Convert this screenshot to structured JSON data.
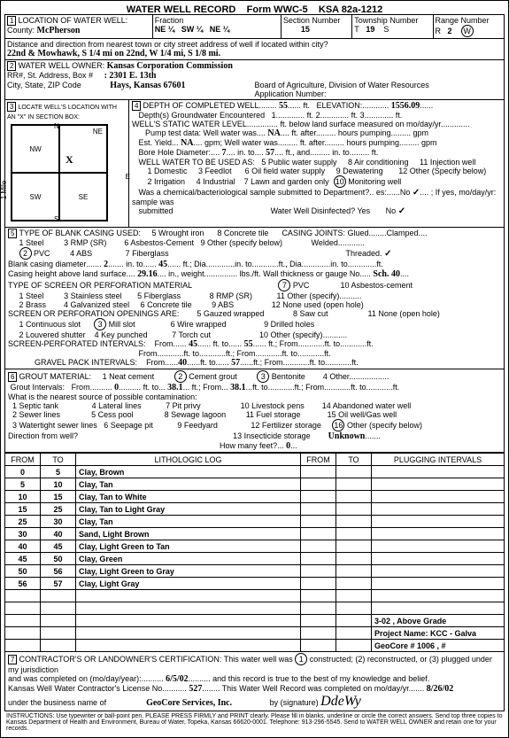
{
  "header": {
    "title": "WATER WELL RECORD",
    "form": "Form WWC-5",
    "ksa": "KSA 82a-1212"
  },
  "s1": {
    "label": "LOCATION OF WATER WELL:",
    "county_label": "County:",
    "county": "McPherson",
    "fraction_label": "Fraction",
    "frac1": "NE ¼",
    "frac2": "SW ¼",
    "frac3": "NE ¼",
    "section_label": "Section Number",
    "section": "15",
    "township_label": "Township Number",
    "township_t": "T",
    "township": "19",
    "township_s": "S",
    "range_label": "Range Number",
    "range_r": "R",
    "range": "2",
    "range_w": "W",
    "dist_label": "Distance and direction from nearest town or city street address of well if located within city?",
    "dist": "22nd & Mowhawk, S 1/4 mi on 22nd, W 1/4 mi, S 1/8 mi."
  },
  "s2": {
    "label": "WATER WELL OWNER:",
    "owner": "Kansas Corporation Commission",
    "addr_label": "RR#, St. Address, Box #",
    "addr": ": 2301 E. 13th",
    "city_label": "City, State, ZIP Code",
    "city": "Hays, Kansas  67601",
    "board": "Board of Agriculture, Division of Water Resources",
    "app_label": "Application Number:"
  },
  "s3": {
    "label": "LOCATE WELL'S LOCATION WITH AN \"X\" IN SECTION BOX:",
    "nw": "NW",
    "ne": "NE",
    "sw": "SW",
    "se": "SE",
    "n": "N",
    "s": "S",
    "e": "E",
    "w": "W",
    "mile": "1 Mile",
    "x": "X"
  },
  "s4": {
    "label": "DEPTH OF COMPLETED WELL",
    "depth": "55",
    "ft": "ft.",
    "elev_label": "ELEVATION:",
    "elev": "1556.09",
    "gw_label": "Depth(s) Groundwater Encountered",
    "gw1": "1",
    "gw2": "ft. 2",
    "gw3": "ft. 3",
    "gw4": "ft.",
    "static_label": "WELL'S STATIC WATER LEVEL",
    "static_suffix": "ft. below land surface measured on mo/day/yr",
    "pump_label": "Pump test data: Well water was",
    "pump_na": "NA",
    "after": "ft. after",
    "hours": "hours pumping",
    "gpm": "gpm",
    "est_label": "Est. Yield",
    "est_na": "NA",
    "gpm2": "gpm; Well water was",
    "bore_label": "Bore Hole Diameter:",
    "bore": "7",
    "into": "in. to",
    "bore2": "57",
    "ftand": "ft., and",
    "into2": "in. to",
    "ft2": "ft.",
    "use_label": "WELL WATER TO BE USED AS:",
    "u1": "1  Domestic",
    "u3": "3  Feedlot",
    "u5": "5  Public water supply",
    "u6": "6  Oil field water supply",
    "u8": "8  Air conditioning",
    "u9": "9  Dewatering",
    "u11": "11  Injection well",
    "u12": "12  Other (Specify below)",
    "u2": "2  Irrigation",
    "u4": "4  Industrial",
    "u7": "7  Lawn and garden only",
    "u10": "Monitoring well",
    "chem_label": "Was a chemical/bacteriological sample submitted to Department?",
    "yesno": "es:......No",
    "ifyes": "; If yes, mo/day/yr: sample was",
    "sub_label": "submitted",
    "dis_label": "Water Well Disinfected?  Yes",
    "no": "No",
    "check": "✓"
  },
  "s5": {
    "label": "TYPE OF BLANK CASING USED:",
    "c1": "1  Steel",
    "c3": "3  RMP (SR)",
    "c5": "5  Wrought iron",
    "c8": "8  Concrete tile",
    "joints_label": "CASING JOINTS: Glued........Clamped",
    "c2": "PVC",
    "c4": "4  ABS",
    "c6": "6  Asbestos-Cement",
    "c7": "7  Fiberglass",
    "c9": "9  Other (specify below)",
    "welded": "Welded",
    "threaded": "Threaded.",
    "tcheck": "✓",
    "dia_label": "Blank casing diameter",
    "dia": "2",
    "inlabel": "in. to",
    "dia2": "45",
    "ftdia": "ft.; Dia.",
    "height_label": "Casing height above land surface",
    "height": "29.16",
    "inweight": "in., weight",
    "lbs": "lbs./ft. Wall thickness or gauge No.",
    "sch": "Sch. 40",
    "screen_label": "TYPE OF SCREEN OR PERFORATION MATERIAL",
    "sc1": "1  Steel",
    "sc3": "3  Stainless steel",
    "sc5": "5  Fiberglass",
    "sc7": "PVC",
    "sc10": "10  Asbestos-cement",
    "sc2": "2  Brass",
    "sc4": "4  Galvanized steel",
    "sc6": "6  Concrete tile",
    "sc8": "8  RMP (SR)",
    "sc9": "9  ABS",
    "sc11": "11  Other (specify)",
    "sc12": "12  None used (open hole)",
    "open_label": "SCREEN OR PERFORATION OPENINGS ARE:",
    "o1": "1  Continuous slot",
    "o3": "Mill slot",
    "o5": "5  Gauzed wrapped",
    "o6": "6  Wire wrapped",
    "o7": "7  Torch cut",
    "o8": "8  Saw cut",
    "o9": "9  Drilled holes",
    "o10": "10  Other (specify)",
    "o11": "11  None (open hole)",
    "o2": "2  Louvered shutter",
    "o4": "4  Key punched",
    "perf_label": "SCREEN-PERFORATED INTERVALS:",
    "from": "From",
    "to": "ft. to",
    "ftfrom": "ft.; From",
    "perf1": "45",
    "perf2": "55",
    "gravel_label": "GRAVEL PACK INTERVALS:",
    "g1": "40",
    "g2": "57"
  },
  "s6": {
    "label": "GROUT MATERIAL:",
    "g1": "1  Neat cement",
    "g2": "Cement grout",
    "g3": "Bentonite",
    "g4": "4  Other",
    "gi_label": "Grout Intervals:",
    "from": "From",
    "v0": "0",
    "to": "ft. to",
    "v1": "38.1",
    "v2": "38.1",
    "ftfrom": "ft.; From",
    "contam_label": "What is the nearest source of possible contamination:",
    "c1": "1  Septic tank",
    "c4": "4  Lateral lines",
    "c7": "7  Pit privy",
    "c10": "10  Livestock pens",
    "c14": "14  Abandoned water well",
    "c2": "2  Sewer lines",
    "c5": "5  Cess pool",
    "c8": "8  Sewage lagoon",
    "c11": "11  Fuel storage",
    "c15": "15  Oil well/Gas well",
    "c3": "3  Watertight sewer lines",
    "c6": "6  Seepage pit",
    "c9": "9  Feedyard",
    "c12": "12  Fertilizer storage",
    "c16": "Other (specify below)",
    "c13": "13  Insecticide storage",
    "unknown": "Unknown",
    "dir_label": "Direction from well?",
    "howmany": "How many feet?",
    "hm": "0"
  },
  "log": {
    "h1": "FROM",
    "h2": "TO",
    "h3": "LITHOLOGIC LOG",
    "h4": "FROM",
    "h5": "TO",
    "h6": "PLUGGING INTERVALS",
    "rows": [
      {
        "f": "0",
        "t": "5",
        "d": "Clay, Brown"
      },
      {
        "f": "5",
        "t": "10",
        "d": "Clay, Tan"
      },
      {
        "f": "10",
        "t": "15",
        "d": "Clay, Tan to White"
      },
      {
        "f": "15",
        "t": "25",
        "d": "Clay, Tan to Light Gray"
      },
      {
        "f": "25",
        "t": "30",
        "d": "Clay, Tan"
      },
      {
        "f": "30",
        "t": "40",
        "d": "Sand, Light Brown"
      },
      {
        "f": "40",
        "t": "45",
        "d": "Clay, Light Green to Tan"
      },
      {
        "f": "45",
        "t": "50",
        "d": "Clay, Green"
      },
      {
        "f": "50",
        "t": "56",
        "d": "Clay, Light Green to Gray"
      },
      {
        "f": "56",
        "t": "57",
        "d": "Clay, Light Gray"
      }
    ],
    "note1": "3-02 , Above Grade",
    "note2": "Project Name: KCC - Galva",
    "note3": "GeoCore # 1006 , #"
  },
  "s7": {
    "label": "CONTRACTOR'S OR LANDOWNER'S CERTIFICATION:  This water well was",
    "c1": "constructed; (2) reconstructed, or (3) plugged under my jurisdiction",
    "date_label": "and was completed on (mo/day/year):",
    "date": "6/5/02",
    "true": "and this record is true to the best of my knowledge and belief.",
    "lic_label": "Kansas Well Water Contractor's License No.",
    "lic": "527",
    "rec_label": "This Water Well Record was completed on mo/day/yr",
    "rec": "8/26/02",
    "bus_label": "under the business name of",
    "bus": "GeoCore Services, Inc.",
    "sig_label": "by (signature)",
    "sig": "DdeWy"
  },
  "footer": "INSTRUCTIONS: Use typewriter or ball-point pen. PLEASE PRESS FIRMLY and PRINT clearly. Please fill in blanks, underline or circle the correct answers. Send top three copies to Kansas Department of Health and Environment, Bureau of Water, Topeka, Kansas 66620-0001. Telephone: 913-296-5545. Send to WATER WELL OWNER and retain one for your records."
}
